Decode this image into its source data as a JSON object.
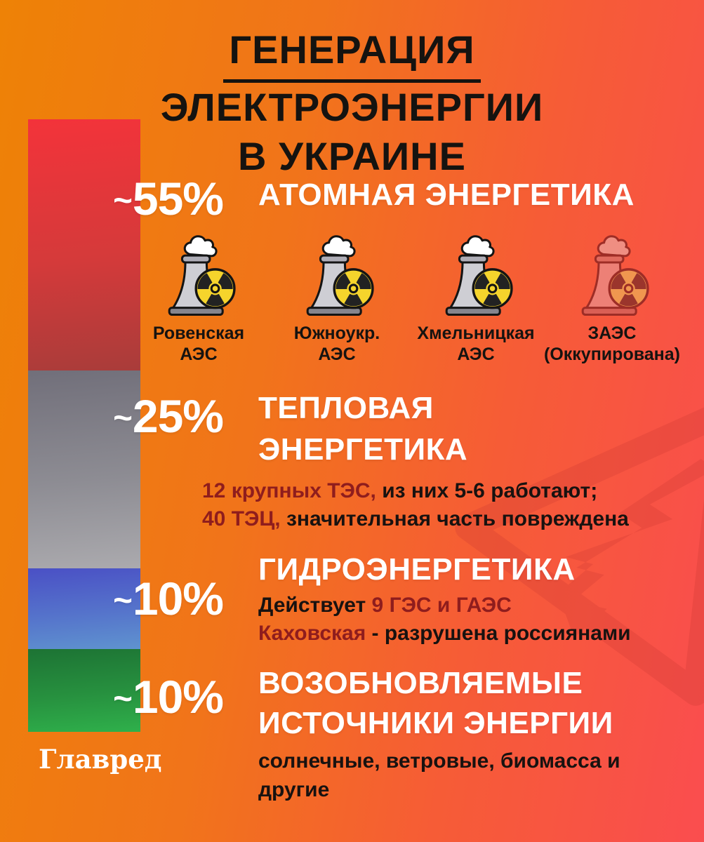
{
  "poster": {
    "title_line1": "ГЕНЕРАЦИЯ",
    "title_line2": "ЭЛЕКТРОЭНЕРГИИ",
    "title_line3": "В УКРАИНЕ",
    "source": "Главред"
  },
  "sections": {
    "nuclear": {
      "approx": "~",
      "percent": "55%",
      "title": "АТОМНАЯ ЭНЕРГЕТИКА",
      "plants": [
        {
          "line1": "Ровенская",
          "line2": "АЭС",
          "occupied": false
        },
        {
          "line1": "Южноукр.",
          "line2": "АЭС",
          "occupied": false
        },
        {
          "line1": "Хмельницкая",
          "line2": "АЭС",
          "occupied": false
        },
        {
          "line1": "ЗАЭС",
          "line2": "(Оккупирована)",
          "occupied": true
        }
      ]
    },
    "thermal": {
      "approx": "~",
      "percent": "25%",
      "title_line1": "ТЕПЛОВАЯ",
      "title_line2": "ЭНЕРГЕТИКА",
      "details": [
        [
          {
            "t": "12 крупных ТЭС,",
            "a": true
          },
          {
            "t": " из них 5-6 работают;",
            "a": false
          }
        ],
        [
          {
            "t": "40 ТЭЦ,",
            "a": true
          },
          {
            "t": " значительная часть повреждена",
            "a": false
          }
        ]
      ]
    },
    "hydro": {
      "approx": "~",
      "percent": "10%",
      "title": "ГИДРОЭНЕРГЕТИКА",
      "details": [
        [
          {
            "t": "Действует ",
            "a": false
          },
          {
            "t": "9 ГЭС и ГАЭС",
            "a": true
          }
        ],
        [
          {
            "t": "Каховская",
            "a": true
          },
          {
            "t": " - разрушена россиянами",
            "a": false
          }
        ]
      ]
    },
    "renewables": {
      "approx": "~",
      "percent": "10%",
      "title_line1": "ВОЗОБНОВЛЯЕМЫЕ",
      "title_line2": "ИСТОЧНИКИ ЭНЕРГИИ",
      "subtitle": "солнечные, ветровые, биомасса и другие"
    }
  },
  "colors": {
    "background_start": "#EE8206",
    "background_end": "#FA4D4F",
    "accent_dark_red": "#8F1D1D",
    "text_black": "#181210",
    "text_white": "#FFFFFF",
    "bar_nuclear_top": "#F3333A",
    "bar_nuclear_bottom": "#A93C3A",
    "bar_thermal_top": "#716F7A",
    "bar_thermal_bottom": "#ABAAAE",
    "bar_hydro_top": "#4A50C5",
    "bar_hydro_bottom": "#5F93CF",
    "bar_renewables_top": "#1D7334",
    "bar_renewables_bottom": "#2FB04B",
    "radiation_disc": "#F5D42C",
    "occupied_icon": "#ED8076"
  },
  "chart_data": {
    "type": "bar",
    "title": "Генерация электроэнергии в Украине",
    "categories": [
      "Атомная энергетика",
      "Тепловая энергетика",
      "Гидроэнергетика",
      "Возобновляемые источники энергии"
    ],
    "values": [
      55,
      25,
      10,
      10
    ],
    "unit": "%",
    "values_approximate": true,
    "orientation": "vertical-stacked-single-bar",
    "segment_colors": [
      "#D53A3A",
      "#8D8C93",
      "#5573CB",
      "#27913F"
    ],
    "annotations": [
      "Атомная: Ровенская АЭС, Южноукр. АЭС, Хмельницкая АЭС, ЗАЭС (Оккупирована)",
      "Тепловая: 12 крупных ТЭС, из них 5-6 работают; 40 ТЭЦ, значительная часть повреждена",
      "Гидро: Действует 9 ГЭС и ГАЭС. Каховская - разрушена россиянами",
      "ВИЭ: солнечные, ветровые, биомасса и другие"
    ],
    "source": "Главред",
    "legend_position": "none",
    "grid": false
  }
}
